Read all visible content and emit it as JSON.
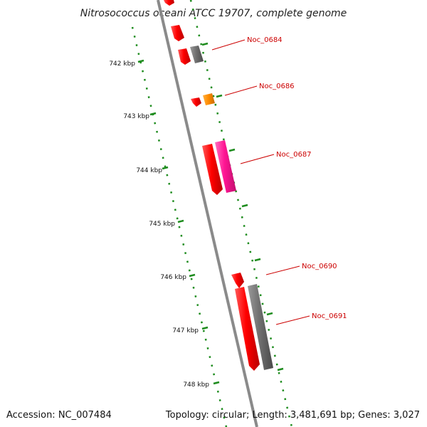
{
  "title": "Nitrosococcus oceani ATCC 19707, complete genome",
  "footer": {
    "accession": "Accession: NC_007484",
    "topology": "Topology: circular; Length: 3,481,691 bp; Genes: 3,027"
  },
  "colors": {
    "backbone": "#8a8a8a",
    "tick": "#1e8c1e",
    "gene_red": "#ff0000",
    "gene_pink": "#ff1493",
    "gene_grey": "#707070",
    "gene_orange": "#ff8c00",
    "label": "#cc0000"
  },
  "scale": {
    "labels": [
      "742 kbp",
      "743 kbp",
      "744 kbp",
      "745 kbp",
      "746 kbp",
      "747 kbp",
      "748 kbp"
    ]
  },
  "genes": [
    {
      "name": "Noc_0684",
      "color": "gene_grey"
    },
    {
      "name": "Noc_0686",
      "color": "gene_orange"
    },
    {
      "name": "Noc_0687",
      "color": "gene_pink"
    },
    {
      "name": "Noc_0690",
      "color": "gene_red"
    },
    {
      "name": "Noc_0691",
      "color": "gene_grey"
    }
  ]
}
